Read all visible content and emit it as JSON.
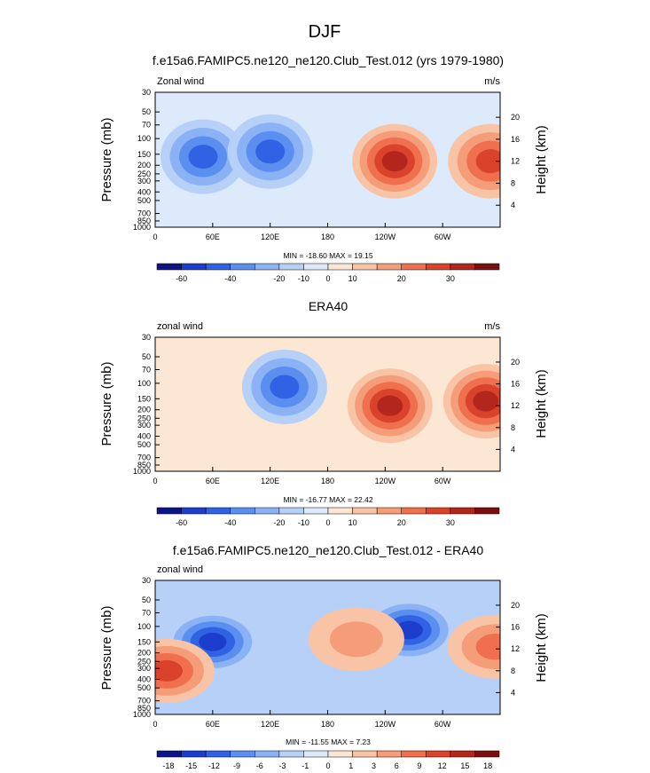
{
  "figure_title": "DJF",
  "colors": {
    "scale_main": [
      "#0d1586",
      "#1b3fcc",
      "#3262e4",
      "#5a8ff0",
      "#8ab2f5",
      "#b7d0f8",
      "#dceafc",
      "#fce6d4",
      "#f9c4a5",
      "#f59c78",
      "#ef6f4e",
      "#d9422b",
      "#b3261d",
      "#7a0f0f"
    ],
    "scale_diff": [
      "#0d1586",
      "#1b3fcc",
      "#3262e4",
      "#5a8ff0",
      "#8ab2f5",
      "#b7d0f8",
      "#dceafc",
      "#fce6d4",
      "#f9c4a5",
      "#f59c78",
      "#ef6f4e",
      "#d9422b",
      "#b3261d",
      "#7a0f0f"
    ]
  },
  "chart_data": [
    {
      "type": "heatmap",
      "title": "f.e15a6.FAMIPC5.ne120_ne120.Club_Test.012 (yrs 1979-1980)",
      "left_label": "Zonal wind",
      "right_label": "m/s",
      "ylabel": "Pressure (mb)",
      "ylabel_right": "Height (km)",
      "x_ticks": [
        "0",
        "60E",
        "120E",
        "180",
        "120W",
        "60W"
      ],
      "y_ticks": [
        "30",
        "50",
        "70",
        "100",
        "150",
        "200",
        "250",
        "300",
        "400",
        "500",
        "700",
        "850",
        "1000"
      ],
      "height_ticks": [
        "20",
        "16",
        "12",
        "8",
        "4"
      ],
      "stats": "MIN = -18.60  MAX =  19.15",
      "colorbar_labels": [
        "-60",
        "-40",
        "-20",
        "-10",
        "0",
        "10",
        "20",
        "30"
      ],
      "features": [
        {
          "kind": "low",
          "lon": 50,
          "p": 160,
          "v": -15
        },
        {
          "kind": "low",
          "lon": 120,
          "p": 140,
          "v": -17
        },
        {
          "kind": "high",
          "lon": 250,
          "p": 180,
          "v": 19
        },
        {
          "kind": "high",
          "lon": 350,
          "p": 180,
          "v": 17
        }
      ]
    },
    {
      "type": "heatmap",
      "title": "ERA40",
      "left_label": "zonal wind",
      "right_label": "m/s",
      "ylabel": "Pressure (mb)",
      "ylabel_right": "Height (km)",
      "x_ticks": [
        "0",
        "60E",
        "120E",
        "180",
        "120W",
        "60W"
      ],
      "y_ticks": [
        "30",
        "50",
        "70",
        "100",
        "150",
        "200",
        "250",
        "300",
        "400",
        "500",
        "700",
        "850",
        "1000"
      ],
      "height_ticks": [
        "20",
        "16",
        "12",
        "8",
        "4"
      ],
      "stats": "MIN = -16.77  MAX =  22.42",
      "colorbar_labels": [
        "-60",
        "-40",
        "-20",
        "-10",
        "0",
        "10",
        "20",
        "30"
      ],
      "features": [
        {
          "kind": "low",
          "lon": 135,
          "p": 110,
          "v": -17
        },
        {
          "kind": "high",
          "lon": 245,
          "p": 180,
          "v": 22
        },
        {
          "kind": "high",
          "lon": 345,
          "p": 160,
          "v": 18
        }
      ]
    },
    {
      "type": "heatmap",
      "title": "f.e15a6.FAMIPC5.ne120_ne120.Club_Test.012 - ERA40",
      "left_label": "zonal wind",
      "right_label": "",
      "ylabel": "Pressure (mb)",
      "ylabel_right": "Height (km)",
      "x_ticks": [
        "0",
        "60E",
        "120E",
        "180",
        "120W",
        "60W"
      ],
      "y_ticks": [
        "30",
        "50",
        "70",
        "100",
        "150",
        "200",
        "250",
        "300",
        "400",
        "500",
        "700",
        "850",
        "1000"
      ],
      "height_ticks": [
        "20",
        "16",
        "12",
        "8",
        "4"
      ],
      "stats": "MIN = -11.55  MAX =   7.23",
      "colorbar_labels": [
        "-18",
        "-15",
        "-12",
        "-9",
        "-6",
        "-3",
        "-1",
        "0",
        "1",
        "3",
        "6",
        "9",
        "12",
        "15",
        "18"
      ],
      "features": [
        {
          "kind": "low",
          "lon": 60,
          "p": 150,
          "v": -11
        },
        {
          "kind": "low",
          "lon": 265,
          "p": 110,
          "v": -9
        },
        {
          "kind": "high",
          "lon": 210,
          "p": 140,
          "v": 4
        },
        {
          "kind": "high",
          "lon": 355,
          "p": 170,
          "v": 6
        },
        {
          "kind": "high",
          "lon": 12,
          "p": 320,
          "v": 7
        }
      ]
    }
  ]
}
